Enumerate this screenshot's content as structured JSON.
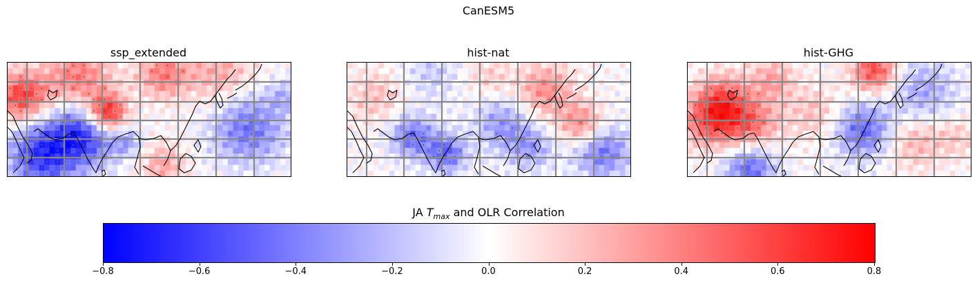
{
  "figure": {
    "title": "CanESM5"
  },
  "panels": [
    {
      "title": "ssp_extended"
    },
    {
      "title": "hist-nat"
    },
    {
      "title": "hist-GHG"
    }
  ],
  "colorbar": {
    "title_prefix": "JA ",
    "title_var": "T",
    "title_sub": "max",
    "title_suffix": " and OLR Correlation",
    "min": -0.8,
    "max": 0.8,
    "ticks": [
      "−0.8",
      "−0.6",
      "−0.4",
      "−0.2",
      "0.0",
      "0.2",
      "0.4",
      "0.6",
      "0.8"
    ],
    "colors": {
      "low": "#0000ff",
      "mid": "#ffffff",
      "high": "#ff0000"
    }
  },
  "styles": {
    "grid_color": "#888888",
    "coast_color": "#000000",
    "stipple_color": "#2e7d32"
  }
}
